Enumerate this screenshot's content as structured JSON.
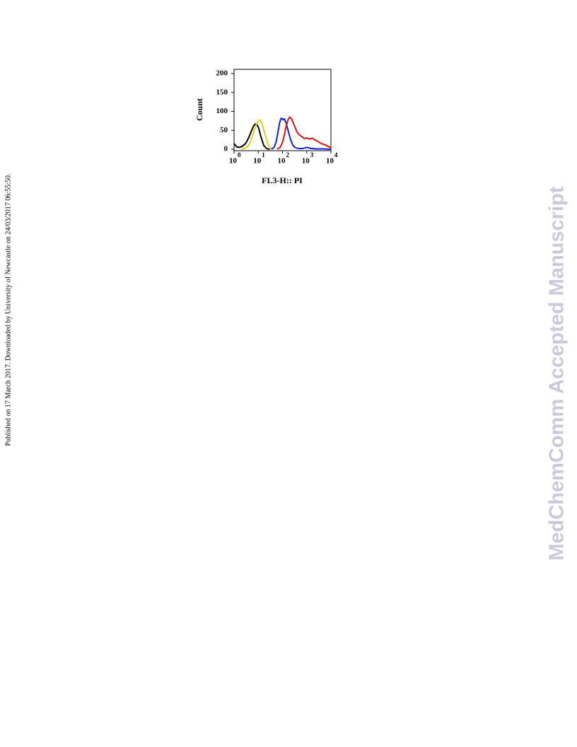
{
  "side_note": "Published on 17 March 2017. Downloaded by University of Newcastle on 24/03/2017 06:55:50.",
  "watermark": "MedChemComm Accepted Manuscript",
  "chart_data": {
    "type": "line",
    "log_x": true,
    "ylabel": "Count",
    "xlabel": "FL3-H:: PI",
    "xlim": [
      1,
      10000
    ],
    "ylim": [
      0,
      200
    ],
    "yticks": [
      0,
      50,
      100,
      150,
      200
    ],
    "xticks": [
      {
        "value": 1,
        "label": "10",
        "exponent": "0"
      },
      {
        "value": 10,
        "label": "10",
        "exponent": "1"
      },
      {
        "value": 100,
        "label": "10",
        "exponent": "2"
      },
      {
        "value": 1000,
        "label": "10",
        "exponent": "3"
      },
      {
        "value": 10000,
        "label": "10",
        "exponent": "4"
      }
    ],
    "series": [
      {
        "color": "#000000",
        "x": [
          1,
          1.3,
          1.7,
          2.2,
          3,
          4,
          5,
          6,
          7,
          8,
          9,
          10.5,
          12,
          14,
          17,
          21,
          25,
          30
        ],
        "values": [
          15,
          6,
          5,
          8,
          15,
          30,
          45,
          58,
          65,
          67,
          64,
          55,
          40,
          25,
          10,
          3,
          1,
          0
        ]
      },
      {
        "color": "#e0d020",
        "x": [
          2,
          3,
          4,
          5,
          6,
          7,
          8,
          9,
          10,
          11.5,
          13,
          15,
          18,
          22,
          27,
          33,
          40
        ],
        "values": [
          0,
          3,
          10,
          22,
          38,
          52,
          63,
          70,
          75,
          78,
          74,
          63,
          45,
          25,
          10,
          3,
          0
        ]
      },
      {
        "color": "#1020e0",
        "x": [
          35,
          45,
          55,
          65,
          75,
          85,
          93,
          105,
          120,
          140,
          170,
          210,
          260,
          320,
          450,
          700,
          1000,
          1500,
          2500,
          5000,
          10000
        ],
        "values": [
          0,
          5,
          20,
          45,
          68,
          80,
          82,
          78,
          80,
          70,
          50,
          28,
          12,
          5,
          2,
          2,
          5,
          2,
          1,
          1,
          0
        ]
      },
      {
        "color": "#e01010",
        "x": [
          60,
          80,
          100,
          120,
          140,
          170,
          200,
          240,
          280,
          330,
          400,
          500,
          650,
          800,
          1000,
          1300,
          1700,
          2200,
          3000,
          4000,
          5500,
          7500,
          10000
        ],
        "values": [
          0,
          5,
          18,
          38,
          60,
          78,
          85,
          80,
          70,
          58,
          45,
          38,
          33,
          28,
          30,
          27,
          29,
          25,
          20,
          15,
          12,
          8,
          4
        ]
      }
    ]
  }
}
